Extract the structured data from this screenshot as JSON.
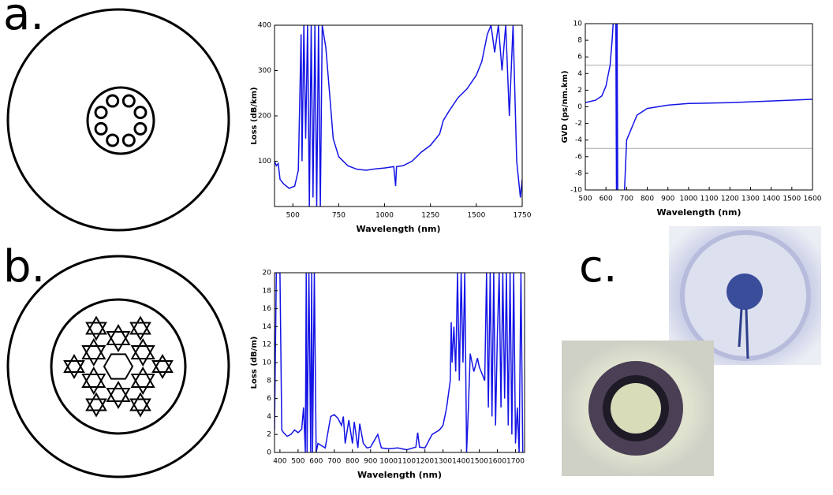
{
  "panels": [
    "a.",
    "b.",
    "c."
  ],
  "chart_data": [
    {
      "type": "line",
      "x_label": "Wavelength (nm)",
      "y_label": "Loss (dB/km)",
      "xlim": [
        400,
        1750
      ],
      "xticks": [
        500,
        750,
        1000,
        1250,
        1500,
        1750
      ],
      "ylim": [
        0,
        400
      ],
      "yticks": [
        100,
        200,
        300,
        400
      ],
      "series": [
        {
          "color": "#1414e6",
          "x": [
            400,
            410,
            420,
            430,
            450,
            480,
            510,
            530,
            545,
            550,
            560,
            570,
            580,
            590,
            600,
            610,
            620,
            630,
            640,
            650,
            660,
            680,
            700,
            720,
            750,
            800,
            850,
            900,
            950,
            1000,
            1050,
            1060,
            1065,
            1100,
            1150,
            1200,
            1250,
            1300,
            1320,
            1350,
            1400,
            1450,
            1500,
            1530,
            1560,
            1580,
            1600,
            1620,
            1640,
            1660,
            1680,
            1700,
            1720,
            1740,
            1750
          ],
          "values": [
            100,
            90,
            95,
            60,
            50,
            40,
            45,
            80,
            380,
            100,
            400,
            150,
            400,
            0,
            400,
            20,
            400,
            0,
            400,
            0,
            400,
            350,
            250,
            150,
            110,
            90,
            82,
            80,
            83,
            85,
            88,
            45,
            88,
            90,
            100,
            120,
            135,
            160,
            190,
            210,
            240,
            260,
            290,
            320,
            380,
            400,
            340,
            400,
            300,
            400,
            200,
            400,
            100,
            20,
            60
          ]
        }
      ]
    },
    {
      "type": "line",
      "x_label": "Wavelength (nm)",
      "y_label": "GVD (ps/nm.km)",
      "xlim": [
        500,
        1600
      ],
      "xticks": [
        500,
        600,
        700,
        800,
        900,
        1000,
        1100,
        1200,
        1300,
        1400,
        1500,
        1600
      ],
      "ylim": [
        -10,
        10
      ],
      "yticks": [
        -10,
        -8,
        -6,
        -4,
        -2,
        0,
        2,
        4,
        6,
        8,
        10
      ],
      "reference_lines": [
        -5,
        5
      ],
      "series": [
        {
          "color": "#1414e6",
          "x": [
            500,
            550,
            580,
            600,
            620,
            630,
            635,
            645,
            648,
            651,
            654,
            657,
            660,
            690,
            700,
            750,
            800,
            900,
            1000,
            1200,
            1400,
            1600
          ],
          "values": [
            0.5,
            0.8,
            1.3,
            2.5,
            5,
            8,
            10,
            null,
            10,
            -10,
            10,
            -10,
            null,
            -10,
            -4,
            -1,
            -0.2,
            0.2,
            0.4,
            0.5,
            0.7,
            0.9
          ]
        }
      ]
    },
    {
      "type": "line",
      "x_label": "Wavelength (nm)",
      "y_label": "Loss (dB/m)",
      "xlim": [
        370,
        1750
      ],
      "xticks": [
        400,
        500,
        600,
        700,
        800,
        900,
        1000,
        1100,
        1200,
        1300,
        1400,
        1500,
        1600,
        1700
      ],
      "ylim": [
        0,
        20
      ],
      "yticks": [
        0,
        2,
        4,
        6,
        8,
        10,
        12,
        14,
        16,
        18,
        20
      ],
      "series": [
        {
          "color": "#1414e6",
          "x": [
            370,
            380,
            390,
            400,
            410,
            420,
            440,
            460,
            480,
            500,
            520,
            530,
            540,
            545,
            550,
            560,
            570,
            575,
            580,
            590,
            600,
            610,
            650,
            680,
            700,
            720,
            740,
            750,
            760,
            780,
            800,
            810,
            830,
            840,
            860,
            880,
            900,
            940,
            960,
            1000,
            1050,
            1100,
            1150,
            1160,
            1170,
            1200,
            1240,
            1280,
            1300,
            1320,
            1340,
            1345,
            1350,
            1360,
            1370,
            1380,
            1390,
            1400,
            1410,
            1420,
            1430,
            1440,
            1450,
            1470,
            1490,
            1500,
            1530,
            1540,
            1550,
            1560,
            1570,
            1580,
            1590,
            1600,
            1610,
            1620,
            1630,
            1640,
            1650,
            1660,
            1670,
            1680,
            1690,
            1700,
            1710,
            1720,
            1730,
            1740
          ],
          "values": [
            2.5,
            20,
            20,
            20,
            2.5,
            2.2,
            1.8,
            2,
            2.5,
            2.2,
            2.6,
            5,
            0,
            20,
            0,
            20,
            0,
            20,
            0,
            20,
            0,
            1,
            0.5,
            4,
            4.2,
            3.8,
            3,
            4,
            1,
            3.6,
            1,
            3.4,
            0.5,
            3.2,
            1,
            0.5,
            0.6,
            2,
            0.5,
            0.4,
            0.5,
            0.3,
            0.6,
            2.2,
            0.6,
            0.5,
            2,
            2.5,
            3,
            5,
            8,
            14.5,
            10,
            14,
            9,
            20,
            8,
            20,
            10,
            20,
            0,
            5,
            11,
            9,
            10.5,
            9.5,
            8,
            20,
            5,
            20,
            4,
            20,
            3,
            13,
            20,
            5,
            20,
            6,
            20,
            3,
            20,
            2,
            20,
            1,
            5,
            0,
            20,
            0
          ]
        }
      ]
    }
  ]
}
